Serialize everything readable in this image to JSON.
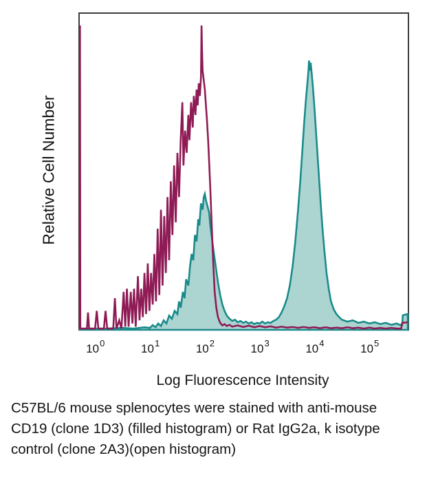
{
  "caption": {
    "lines": [
      "C57BL/6 mouse splenocytes were stained with anti-mouse",
      "CD19 (clone 1D3) (filled histogram) or Rat IgG2a, k isotype",
      "control (clone 2A3)(open histogram)"
    ]
  },
  "chart_data": {
    "type": "area",
    "description": "Flow cytometry overlay histogram: filled anti-CD19 stain vs open isotype control",
    "grid": false,
    "legend": "none (described in caption)",
    "plot_border_color": "#3C3C3C",
    "background_color": "#FFFFFF",
    "x_axis": {
      "label": "Log Fluorescence Intensity",
      "scale": "log10",
      "log_min": -0.28,
      "log_max": 5.7,
      "ticks": [
        {
          "base": "10",
          "exponent": "0",
          "log": 0
        },
        {
          "base": "10",
          "exponent": "1",
          "log": 1
        },
        {
          "base": "10",
          "exponent": "2",
          "log": 2
        },
        {
          "base": "10",
          "exponent": "3",
          "log": 3
        },
        {
          "base": "10",
          "exponent": "4",
          "log": 4
        },
        {
          "base": "10",
          "exponent": "5",
          "log": 5
        }
      ]
    },
    "y_axis": {
      "label": "Relative Cell Number",
      "range": [
        0,
        1
      ],
      "ticks": "none"
    },
    "series": [
      {
        "id": "cd19-filled",
        "name": "anti-mouse CD19 (clone 1D3) — filled histogram",
        "style": "filled",
        "stroke": "#1A8A8A",
        "fill": "#ACD5D2",
        "peaks": [
          {
            "log_x": 2.0,
            "height": 0.43
          },
          {
            "log_x": 3.9,
            "height": 0.852
          }
        ],
        "points": [
          [
            -0.28,
            0.004
          ],
          [
            0.2,
            0.004
          ],
          [
            0.5,
            0.006
          ],
          [
            0.7,
            0.004
          ],
          [
            0.9,
            0.008
          ],
          [
            1.0,
            0.006
          ],
          [
            1.05,
            0.015
          ],
          [
            1.1,
            0.008
          ],
          [
            1.15,
            0.02
          ],
          [
            1.2,
            0.012
          ],
          [
            1.25,
            0.03
          ],
          [
            1.3,
            0.02
          ],
          [
            1.35,
            0.045
          ],
          [
            1.4,
            0.035
          ],
          [
            1.45,
            0.06
          ],
          [
            1.5,
            0.05
          ],
          [
            1.53,
            0.09
          ],
          [
            1.56,
            0.07
          ],
          [
            1.6,
            0.12
          ],
          [
            1.63,
            0.1
          ],
          [
            1.66,
            0.16
          ],
          [
            1.7,
            0.14
          ],
          [
            1.73,
            0.2
          ],
          [
            1.76,
            0.24
          ],
          [
            1.79,
            0.22
          ],
          [
            1.82,
            0.3
          ],
          [
            1.85,
            0.28
          ],
          [
            1.88,
            0.35
          ],
          [
            1.9,
            0.33
          ],
          [
            1.93,
            0.4
          ],
          [
            1.96,
            0.38
          ],
          [
            1.98,
            0.42
          ],
          [
            2.0,
            0.43
          ],
          [
            2.02,
            0.41
          ],
          [
            2.05,
            0.39
          ],
          [
            2.08,
            0.37
          ],
          [
            2.1,
            0.33
          ],
          [
            2.13,
            0.29
          ],
          [
            2.16,
            0.25
          ],
          [
            2.2,
            0.2
          ],
          [
            2.24,
            0.15
          ],
          [
            2.28,
            0.11
          ],
          [
            2.32,
            0.08
          ],
          [
            2.36,
            0.06
          ],
          [
            2.4,
            0.045
          ],
          [
            2.45,
            0.035
          ],
          [
            2.5,
            0.028
          ],
          [
            2.55,
            0.032
          ],
          [
            2.6,
            0.024
          ],
          [
            2.65,
            0.028
          ],
          [
            2.7,
            0.022
          ],
          [
            2.75,
            0.026
          ],
          [
            2.8,
            0.02
          ],
          [
            2.85,
            0.024
          ],
          [
            2.9,
            0.018
          ],
          [
            2.95,
            0.022
          ],
          [
            3.0,
            0.02
          ],
          [
            3.05,
            0.026
          ],
          [
            3.1,
            0.02
          ],
          [
            3.15,
            0.024
          ],
          [
            3.2,
            0.022
          ],
          [
            3.25,
            0.028
          ],
          [
            3.3,
            0.032
          ],
          [
            3.35,
            0.04
          ],
          [
            3.4,
            0.055
          ],
          [
            3.45,
            0.075
          ],
          [
            3.5,
            0.1
          ],
          [
            3.55,
            0.14
          ],
          [
            3.6,
            0.2
          ],
          [
            3.65,
            0.28
          ],
          [
            3.7,
            0.38
          ],
          [
            3.74,
            0.47
          ],
          [
            3.78,
            0.57
          ],
          [
            3.81,
            0.65
          ],
          [
            3.84,
            0.72
          ],
          [
            3.87,
            0.78
          ],
          [
            3.89,
            0.82
          ],
          [
            3.9,
            0.852
          ],
          [
            3.915,
            0.82
          ],
          [
            3.93,
            0.845
          ],
          [
            3.95,
            0.81
          ],
          [
            3.97,
            0.77
          ],
          [
            4.0,
            0.7
          ],
          [
            4.03,
            0.62
          ],
          [
            4.06,
            0.54
          ],
          [
            4.09,
            0.46
          ],
          [
            4.12,
            0.38
          ],
          [
            4.15,
            0.31
          ],
          [
            4.18,
            0.25
          ],
          [
            4.22,
            0.18
          ],
          [
            4.26,
            0.13
          ],
          [
            4.3,
            0.09
          ],
          [
            4.35,
            0.065
          ],
          [
            4.4,
            0.05
          ],
          [
            4.45,
            0.04
          ],
          [
            4.5,
            0.032
          ],
          [
            4.6,
            0.026
          ],
          [
            4.7,
            0.03
          ],
          [
            4.8,
            0.022
          ],
          [
            4.9,
            0.026
          ],
          [
            5.0,
            0.02
          ],
          [
            5.1,
            0.024
          ],
          [
            5.2,
            0.018
          ],
          [
            5.3,
            0.022
          ],
          [
            5.4,
            0.016
          ],
          [
            5.5,
            0.02
          ],
          [
            5.55,
            0.016
          ],
          [
            5.6,
            0.016
          ],
          [
            5.61,
            0.046
          ],
          [
            5.7,
            0.05
          ]
        ]
      },
      {
        "id": "isotype-open",
        "name": "Rat IgG2a, k isotype control (clone 2A3) — open histogram",
        "style": "open",
        "stroke": "#8E1B55",
        "fill": "none",
        "peaks": [
          {
            "log_x": 1.94,
            "height": 0.963
          }
        ],
        "points": [
          [
            -0.28,
            0.004
          ],
          [
            -0.276,
            0.963
          ],
          [
            -0.27,
            0.004
          ],
          [
            -0.15,
            0.004
          ],
          [
            -0.13,
            0.055
          ],
          [
            -0.11,
            0.004
          ],
          [
            0.0,
            0.004
          ],
          [
            0.03,
            0.06
          ],
          [
            0.06,
            0.004
          ],
          [
            0.16,
            0.004
          ],
          [
            0.19,
            0.06
          ],
          [
            0.22,
            0.004
          ],
          [
            0.33,
            0.004
          ],
          [
            0.36,
            0.1
          ],
          [
            0.39,
            0.004
          ],
          [
            0.44,
            0.03
          ],
          [
            0.48,
            0.004
          ],
          [
            0.52,
            0.12
          ],
          [
            0.55,
            0.01
          ],
          [
            0.58,
            0.13
          ],
          [
            0.61,
            0.01
          ],
          [
            0.65,
            0.12
          ],
          [
            0.68,
            0.02
          ],
          [
            0.71,
            0.13
          ],
          [
            0.74,
            0.01
          ],
          [
            0.78,
            0.17
          ],
          [
            0.81,
            0.03
          ],
          [
            0.84,
            0.13
          ],
          [
            0.87,
            0.04
          ],
          [
            0.9,
            0.18
          ],
          [
            0.93,
            0.05
          ],
          [
            0.96,
            0.21
          ],
          [
            0.99,
            0.06
          ],
          [
            1.02,
            0.18
          ],
          [
            1.05,
            0.08
          ],
          [
            1.08,
            0.24
          ],
          [
            1.11,
            0.09
          ],
          [
            1.14,
            0.32
          ],
          [
            1.17,
            0.11
          ],
          [
            1.2,
            0.38
          ],
          [
            1.23,
            0.14
          ],
          [
            1.26,
            0.36
          ],
          [
            1.29,
            0.18
          ],
          [
            1.32,
            0.42
          ],
          [
            1.35,
            0.22
          ],
          [
            1.38,
            0.47
          ],
          [
            1.41,
            0.3
          ],
          [
            1.44,
            0.52
          ],
          [
            1.47,
            0.34
          ],
          [
            1.5,
            0.56
          ],
          [
            1.53,
            0.42
          ],
          [
            1.56,
            0.6
          ],
          [
            1.59,
            0.72
          ],
          [
            1.61,
            0.52
          ],
          [
            1.64,
            0.63
          ],
          [
            1.67,
            0.56
          ],
          [
            1.7,
            0.68
          ],
          [
            1.72,
            0.6
          ],
          [
            1.75,
            0.72
          ],
          [
            1.78,
            0.64
          ],
          [
            1.8,
            0.74
          ],
          [
            1.83,
            0.68
          ],
          [
            1.85,
            0.76
          ],
          [
            1.87,
            0.71
          ],
          [
            1.89,
            0.78
          ],
          [
            1.91,
            0.74
          ],
          [
            1.93,
            0.8
          ],
          [
            1.94,
            0.963
          ],
          [
            1.95,
            0.88
          ],
          [
            1.96,
            0.82
          ],
          [
            1.98,
            0.79
          ],
          [
            2.0,
            0.76
          ],
          [
            2.02,
            0.71
          ],
          [
            2.04,
            0.66
          ],
          [
            2.06,
            0.6
          ],
          [
            2.08,
            0.53
          ],
          [
            2.1,
            0.45
          ],
          [
            2.12,
            0.36
          ],
          [
            2.14,
            0.27
          ],
          [
            2.16,
            0.19
          ],
          [
            2.18,
            0.12
          ],
          [
            2.21,
            0.07
          ],
          [
            2.24,
            0.04
          ],
          [
            2.28,
            0.022
          ],
          [
            2.32,
            0.014
          ],
          [
            2.36,
            0.018
          ],
          [
            2.4,
            0.012
          ],
          [
            2.45,
            0.016
          ],
          [
            2.5,
            0.01
          ],
          [
            2.6,
            0.014
          ],
          [
            2.7,
            0.009
          ],
          [
            2.8,
            0.013
          ],
          [
            2.9,
            0.008
          ],
          [
            3.0,
            0.012
          ],
          [
            3.1,
            0.008
          ],
          [
            3.2,
            0.011
          ],
          [
            3.3,
            0.007
          ],
          [
            3.4,
            0.01
          ],
          [
            3.5,
            0.007
          ],
          [
            3.6,
            0.009
          ],
          [
            3.7,
            0.006
          ],
          [
            3.8,
            0.009
          ],
          [
            3.9,
            0.006
          ],
          [
            4.0,
            0.008
          ],
          [
            4.1,
            0.005
          ],
          [
            4.2,
            0.008
          ],
          [
            4.3,
            0.005
          ],
          [
            4.4,
            0.007
          ],
          [
            4.5,
            0.005
          ],
          [
            4.6,
            0.008
          ],
          [
            4.7,
            0.005
          ],
          [
            4.8,
            0.007
          ],
          [
            4.9,
            0.004
          ],
          [
            5.0,
            0.007
          ],
          [
            5.1,
            0.004
          ],
          [
            5.2,
            0.006
          ],
          [
            5.3,
            0.004
          ],
          [
            5.4,
            0.006
          ],
          [
            5.5,
            0.004
          ],
          [
            5.58,
            0.004
          ],
          [
            5.6,
            0.022
          ],
          [
            5.7,
            0.024
          ]
        ]
      }
    ]
  }
}
